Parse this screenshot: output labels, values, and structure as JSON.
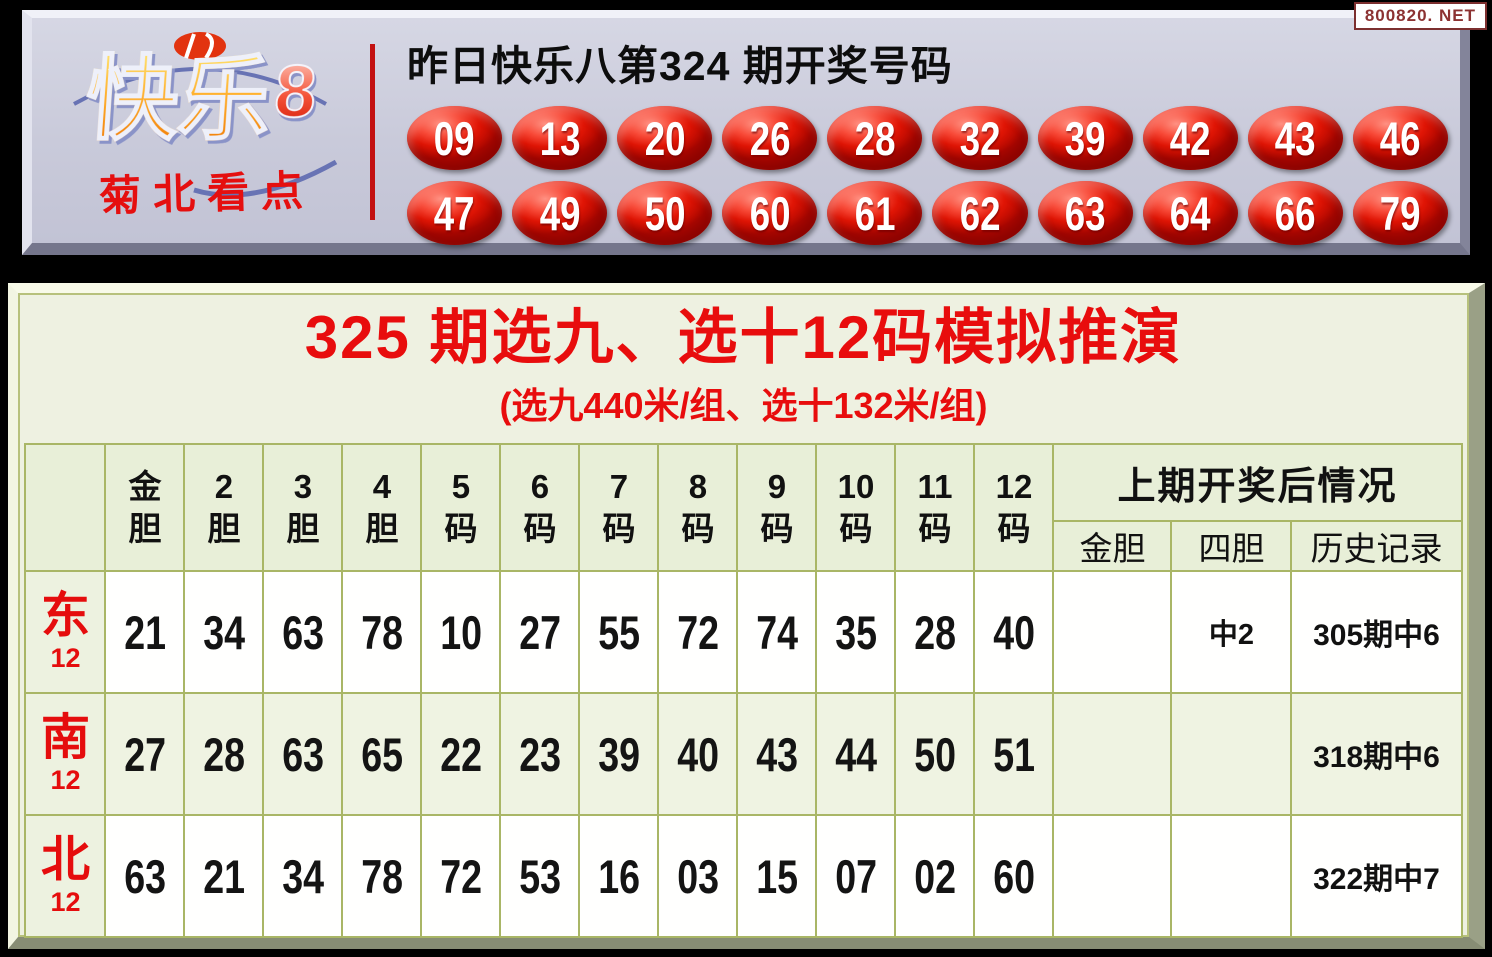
{
  "site_badge": {
    "label": "800820. NET"
  },
  "banner": {
    "logo": {
      "brand": "快乐",
      "brand_number": "8",
      "tagline": "菊北看点",
      "emblem": "china-lottery-emblem"
    },
    "draw_title": "昨日快乐八第324 期开奖号码",
    "balls": [
      [
        "09",
        "13",
        "20",
        "26",
        "28",
        "32",
        "39",
        "42",
        "43",
        "46"
      ],
      [
        "47",
        "49",
        "50",
        "60",
        "61",
        "62",
        "63",
        "64",
        "66",
        "79"
      ]
    ]
  },
  "panel": {
    "title": "325 期选九、选十12码模拟推演",
    "subtitle": "(选九440米/组、选十132米/组)",
    "table": {
      "number_headers": [
        [
          "金",
          "胆"
        ],
        [
          "2",
          "胆"
        ],
        [
          "3",
          "胆"
        ],
        [
          "4",
          "胆"
        ],
        [
          "5",
          "码"
        ],
        [
          "6",
          "码"
        ],
        [
          "7",
          "码"
        ],
        [
          "8",
          "码"
        ],
        [
          "9",
          "码"
        ],
        [
          "10",
          "码"
        ],
        [
          "11",
          "码"
        ],
        [
          "12",
          "码"
        ]
      ],
      "result_group_header": "上期开奖后情况",
      "result_sub_headers": [
        "金胆",
        "四胆",
        "历史记录"
      ],
      "rows": [
        {
          "region": "东",
          "count": "12",
          "numbers": [
            "21",
            "34",
            "63",
            "78",
            "10",
            "27",
            "55",
            "72",
            "74",
            "35",
            "28",
            "40"
          ],
          "jindan": "",
          "sidan": "中2",
          "history": "305期中6"
        },
        {
          "region": "南",
          "count": "12",
          "numbers": [
            "27",
            "28",
            "63",
            "65",
            "22",
            "23",
            "39",
            "40",
            "43",
            "44",
            "50",
            "51"
          ],
          "jindan": "",
          "sidan": "",
          "history": "318期中6"
        },
        {
          "region": "北",
          "count": "12",
          "numbers": [
            "63",
            "21",
            "34",
            "78",
            "72",
            "53",
            "16",
            "03",
            "15",
            "07",
            "02",
            "60"
          ],
          "jindan": "",
          "sidan": "",
          "history": "322期中7"
        }
      ]
    }
  },
  "colors": {
    "accent_red": "#e80d0d",
    "ball_red": "#e01505",
    "banner_bg": "#c9cada",
    "panel_bg": "#eef1e1",
    "grid_line": "#a9b666",
    "badge_text": "#8c3232"
  }
}
